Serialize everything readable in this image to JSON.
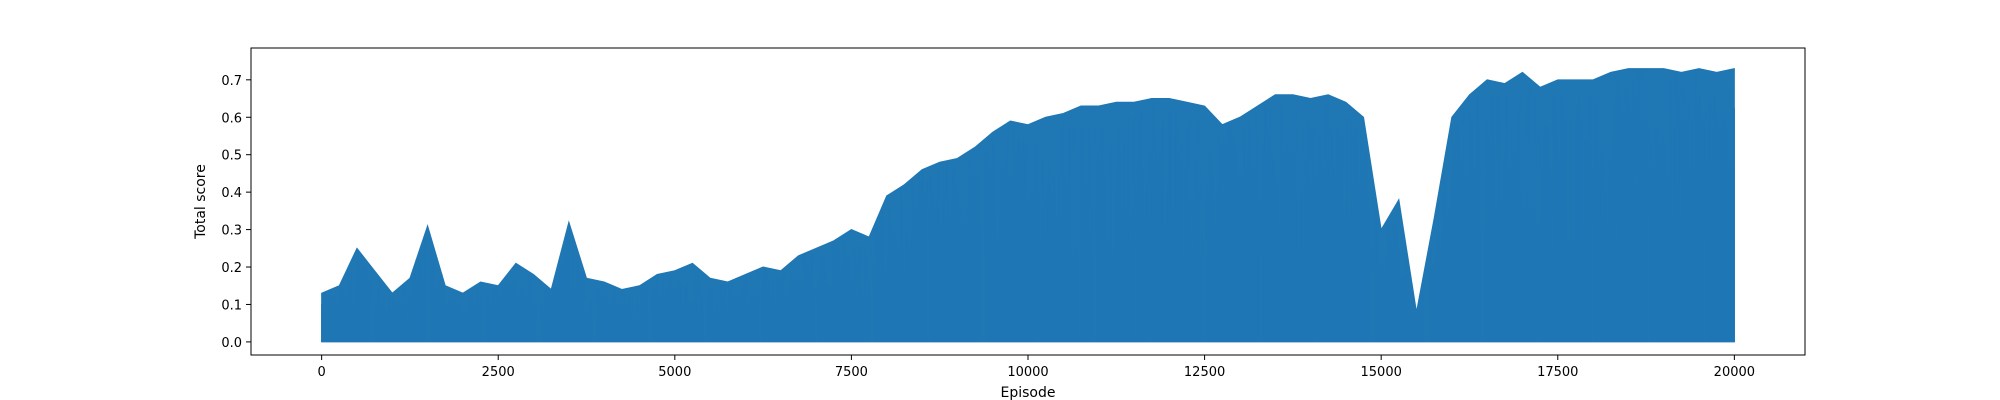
{
  "chart_data": {
    "type": "line",
    "title": "",
    "xlabel": "Episode",
    "ylabel": "Total score",
    "xlim": [
      -1000,
      21000
    ],
    "ylim": [
      -0.035,
      0.785
    ],
    "xticks": [
      0,
      2500,
      5000,
      7500,
      10000,
      12500,
      15000,
      17500,
      20000
    ],
    "yticks": [
      0.0,
      0.1,
      0.2,
      0.3,
      0.4,
      0.5,
      0.6,
      0.7
    ],
    "xtick_labels": [
      "0",
      "2500",
      "5000",
      "7500",
      "10000",
      "12500",
      "15000",
      "17500",
      "20000"
    ],
    "ytick_labels": [
      "0.0",
      "0.1",
      "0.2",
      "0.3",
      "0.4",
      "0.5",
      "0.6",
      "0.7"
    ],
    "grid": false,
    "series": [
      {
        "color": "#1f77b4",
        "x": [
          0,
          250,
          500,
          750,
          1000,
          1250,
          1500,
          1750,
          2000,
          2250,
          2500,
          2750,
          3000,
          3250,
          3500,
          3750,
          4000,
          4250,
          4500,
          4750,
          5000,
          5250,
          5500,
          5750,
          6000,
          6250,
          6500,
          6750,
          7000,
          7250,
          7500,
          7750,
          8000,
          8250,
          8500,
          8750,
          9000,
          9250,
          9500,
          9750,
          10000,
          10250,
          10500,
          10750,
          11000,
          11250,
          11500,
          11750,
          12000,
          12250,
          12500,
          12750,
          13000,
          13250,
          13500,
          13750,
          14000,
          14250,
          14500,
          14750,
          15000,
          15250,
          15500,
          15750,
          16000,
          16250,
          16500,
          16750,
          17000,
          17250,
          17500,
          17750,
          18000,
          18250,
          18500,
          18750,
          19000,
          19250,
          19500,
          19750,
          20000
        ],
        "upper": [
          0.13,
          0.15,
          0.25,
          0.19,
          0.13,
          0.17,
          0.31,
          0.15,
          0.13,
          0.16,
          0.15,
          0.21,
          0.18,
          0.14,
          0.32,
          0.17,
          0.16,
          0.14,
          0.15,
          0.18,
          0.19,
          0.21,
          0.17,
          0.16,
          0.18,
          0.2,
          0.19,
          0.23,
          0.25,
          0.27,
          0.3,
          0.28,
          0.39,
          0.42,
          0.46,
          0.48,
          0.49,
          0.52,
          0.56,
          0.59,
          0.58,
          0.6,
          0.61,
          0.63,
          0.63,
          0.64,
          0.64,
          0.65,
          0.65,
          0.64,
          0.63,
          0.58,
          0.6,
          0.63,
          0.66,
          0.66,
          0.65,
          0.66,
          0.64,
          0.6,
          0.3,
          0.38,
          0.08,
          0.33,
          0.6,
          0.66,
          0.7,
          0.69,
          0.72,
          0.68,
          0.7,
          0.7,
          0.7,
          0.72,
          0.73,
          0.73,
          0.73,
          0.72,
          0.73,
          0.72,
          0.73
        ],
        "lower": [
          0.0,
          0.0,
          0.0,
          0.0,
          0.0,
          0.0,
          0.0,
          0.0,
          0.0,
          0.0,
          0.0,
          0.0,
          0.0,
          0.0,
          0.0,
          0.0,
          0.0,
          0.0,
          0.0,
          0.0,
          0.0,
          0.0,
          0.0,
          0.0,
          0.0,
          0.0,
          0.0,
          0.0,
          0.0,
          0.0,
          0.0,
          0.0,
          0.0,
          0.0,
          0.0,
          0.0,
          0.0,
          0.0,
          0.0,
          0.0,
          0.0,
          0.0,
          0.0,
          0.0,
          0.0,
          0.0,
          0.0,
          0.0,
          0.0,
          0.0,
          0.0,
          0.0,
          0.0,
          0.0,
          0.0,
          0.0,
          0.0,
          0.0,
          0.0,
          0.0,
          0.0,
          0.0,
          0.0,
          0.0,
          0.0,
          0.0,
          0.0,
          0.0,
          0.0,
          0.0,
          0.0,
          0.0,
          0.0,
          0.0,
          0.0,
          0.0,
          0.0,
          0.0,
          0.0,
          0.0,
          0.0
        ]
      }
    ]
  }
}
